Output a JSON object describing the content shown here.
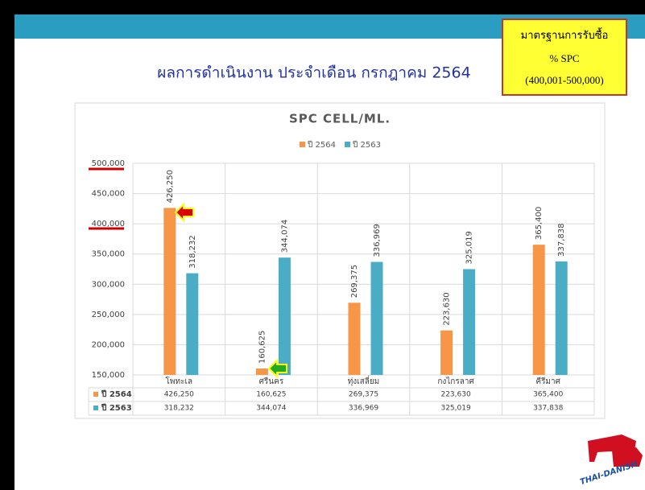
{
  "slide": {
    "title": "ผลการดำเนินงาน ประจำเดือน กรกฎาคม 2564",
    "standard_box": [
      "มาตรฐานการรับซื้อ",
      "% SPC",
      "(400,001-500,000)"
    ],
    "logo": "THAI-DANISH"
  },
  "chart_data": {
    "type": "bar",
    "title": "SPC CELL/ML.",
    "categories": [
      "โพทะเล",
      "ศรีนคร",
      "ทุ่งเสลี่ยม",
      "กงไกรลาศ",
      "คีรีมาศ"
    ],
    "series": [
      {
        "name": "ปี 2564",
        "color": "#f79646",
        "values": [
          426250,
          160625,
          269375,
          223630,
          365400
        ],
        "value_labels": [
          "426,250",
          "160,625",
          "269,375",
          "223,630",
          "365,400"
        ]
      },
      {
        "name": "ปี 2563",
        "color": "#4bacc6",
        "values": [
          318232,
          344074,
          336969,
          325019,
          337838
        ],
        "value_labels": [
          "318,232",
          "344,074",
          "336,969",
          "325,019",
          "337,838"
        ]
      }
    ],
    "ylim": [
      150000,
      500000
    ],
    "yticks": [
      {
        "value": 150000,
        "label": "150,000"
      },
      {
        "value": 200000,
        "label": "200,000"
      },
      {
        "value": 250000,
        "label": "250,000"
      },
      {
        "value": 300000,
        "label": "300,000"
      },
      {
        "value": 350000,
        "label": "350,000"
      },
      {
        "value": 400000,
        "label": "400,000"
      },
      {
        "value": 450000,
        "label": "450,000"
      },
      {
        "value": 500000,
        "label": "500,000"
      }
    ],
    "grid": true
  }
}
